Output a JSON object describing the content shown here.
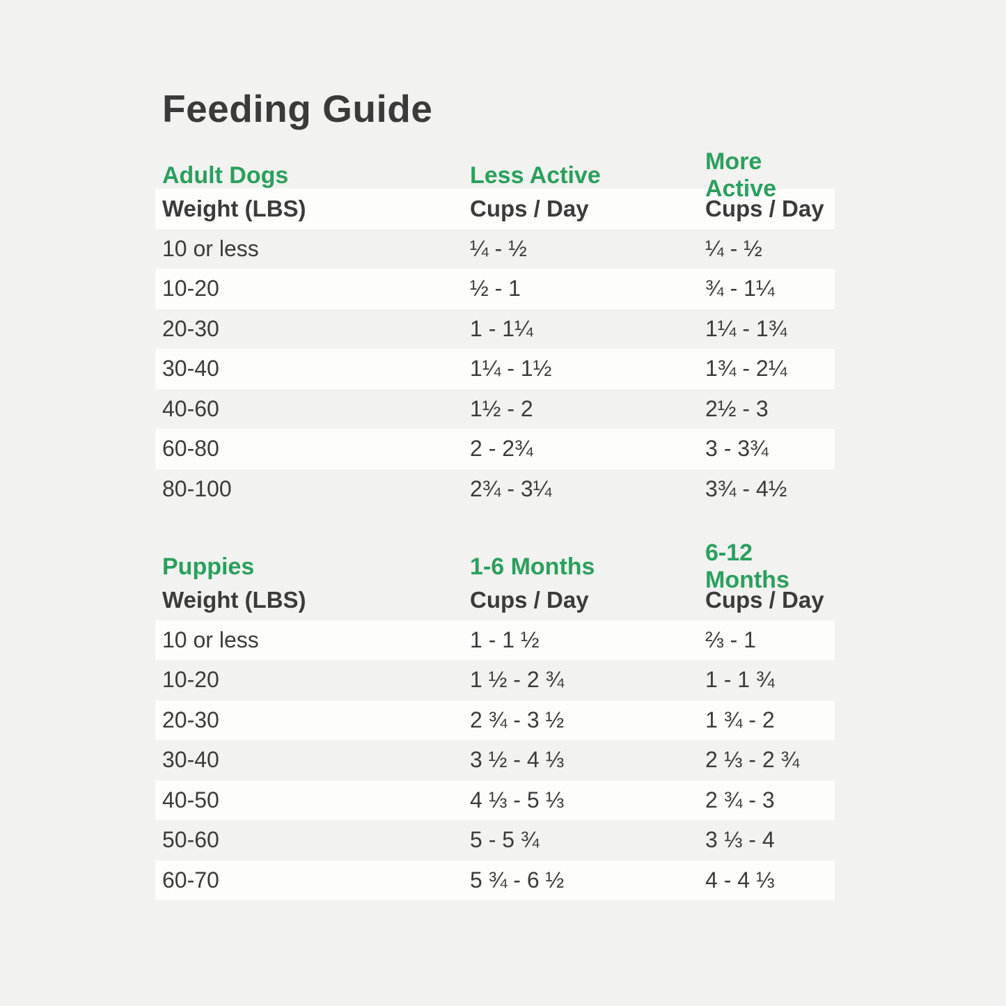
{
  "title": "Feeding Guide",
  "colors": {
    "background": "#f2f2f0",
    "row_highlight": "#fdfdfc",
    "accent_green": "#2aa05d",
    "text_dark": "#3b3b3b"
  },
  "sections": [
    {
      "name": "Adult Dogs",
      "labels": [
        "Adult Dogs",
        "Less Active",
        "More Active"
      ],
      "columns": [
        "Weight (LBS)",
        "Cups / Day",
        "Cups / Day"
      ],
      "rows": [
        {
          "weight": "10 or less",
          "cups1": "¼ - ½",
          "cups2": "¼ - ½"
        },
        {
          "weight": "10-20",
          "cups1": "½ - 1",
          "cups2": "¾ - 1¼"
        },
        {
          "weight": "20-30",
          "cups1": "1 - 1¼",
          "cups2": "1¼ - 1¾"
        },
        {
          "weight": "30-40",
          "cups1": "1¼ - 1½",
          "cups2": "1¾ - 2¼"
        },
        {
          "weight": "40-60",
          "cups1": "1½ - 2",
          "cups2": "2½ - 3"
        },
        {
          "weight": "60-80",
          "cups1": "2 - 2¾",
          "cups2": "3 - 3¾"
        },
        {
          "weight": "80-100",
          "cups1": "2¾ - 3¼",
          "cups2": "3¾ - 4½"
        }
      ]
    },
    {
      "name": "Puppies",
      "labels": [
        "Puppies",
        "1-6 Months",
        "6-12 Months"
      ],
      "columns": [
        "Weight (LBS)",
        "Cups / Day",
        "Cups / Day"
      ],
      "rows": [
        {
          "weight": "10 or less",
          "cups1": "1 - 1 ½",
          "cups2": "⅔ - 1"
        },
        {
          "weight": "10-20",
          "cups1": "1 ½ - 2 ¾",
          "cups2": "1 - 1 ¾"
        },
        {
          "weight": "20-30",
          "cups1": "2 ¾ - 3 ½",
          "cups2": "1 ¾ - 2"
        },
        {
          "weight": "30-40",
          "cups1": "3 ½ - 4 ⅓",
          "cups2": "2 ⅓ - 2 ¾"
        },
        {
          "weight": "40-50",
          "cups1": "4 ⅓ - 5 ⅓",
          "cups2": "2 ¾ - 3"
        },
        {
          "weight": "50-60",
          "cups1": "5 - 5 ¾",
          "cups2": "3 ⅓ - 4"
        },
        {
          "weight": "60-70",
          "cups1": "5 ¾ - 6 ½",
          "cups2": "4 - 4 ⅓"
        }
      ]
    }
  ]
}
